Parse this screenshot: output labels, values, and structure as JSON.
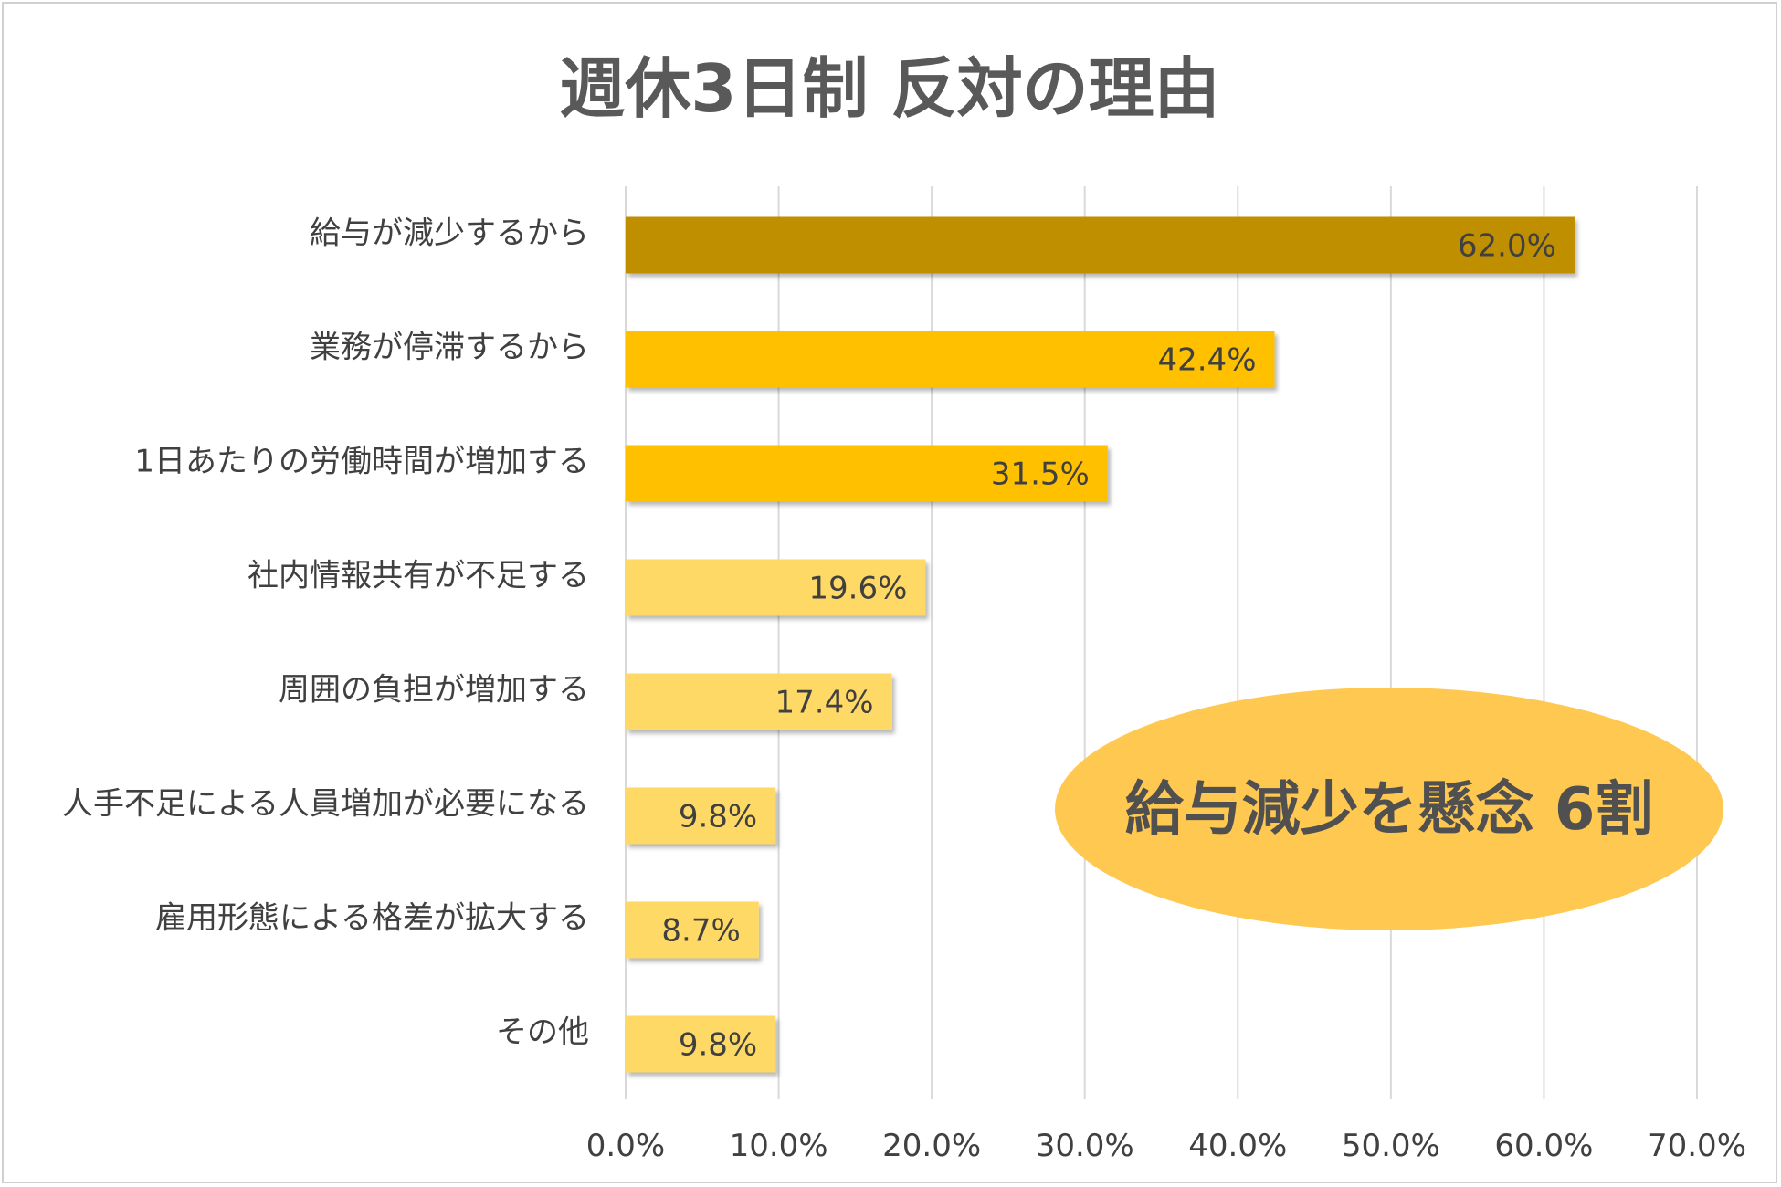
{
  "chart_data": {
    "type": "bar",
    "orientation": "horizontal",
    "title": "週休3日制 反対の理由",
    "categories": [
      "給与が減少するから",
      "業務が停滞するから",
      "1日あたりの労働時間が増加する",
      "社内情報共有が不足する",
      "周囲の負担が増加する",
      "人手不足による人員増加が必要になる",
      "雇用形態による格差が拡大する",
      "その他"
    ],
    "values": [
      62.0,
      42.4,
      31.5,
      19.6,
      17.4,
      9.8,
      8.7,
      9.8
    ],
    "value_labels": [
      "62.0%",
      "42.4%",
      "31.5%",
      "19.6%",
      "17.4%",
      "9.8%",
      "8.7%",
      "9.8%"
    ],
    "bar_colors": [
      "#bf8f00",
      "#ffc000",
      "#ffc000",
      "#ffd966",
      "#ffd966",
      "#ffd966",
      "#ffd966",
      "#ffd966"
    ],
    "xlim": [
      0,
      70
    ],
    "x_ticks": [
      0,
      10,
      20,
      30,
      40,
      50,
      60,
      70
    ],
    "x_tick_labels": [
      "0.0%",
      "10.0%",
      "20.0%",
      "30.0%",
      "40.0%",
      "50.0%",
      "60.0%",
      "70.0%"
    ],
    "grid": true,
    "legend": "none",
    "annotation": {
      "text": "給与減少を懸念 6割",
      "color": "#ffc850"
    }
  }
}
